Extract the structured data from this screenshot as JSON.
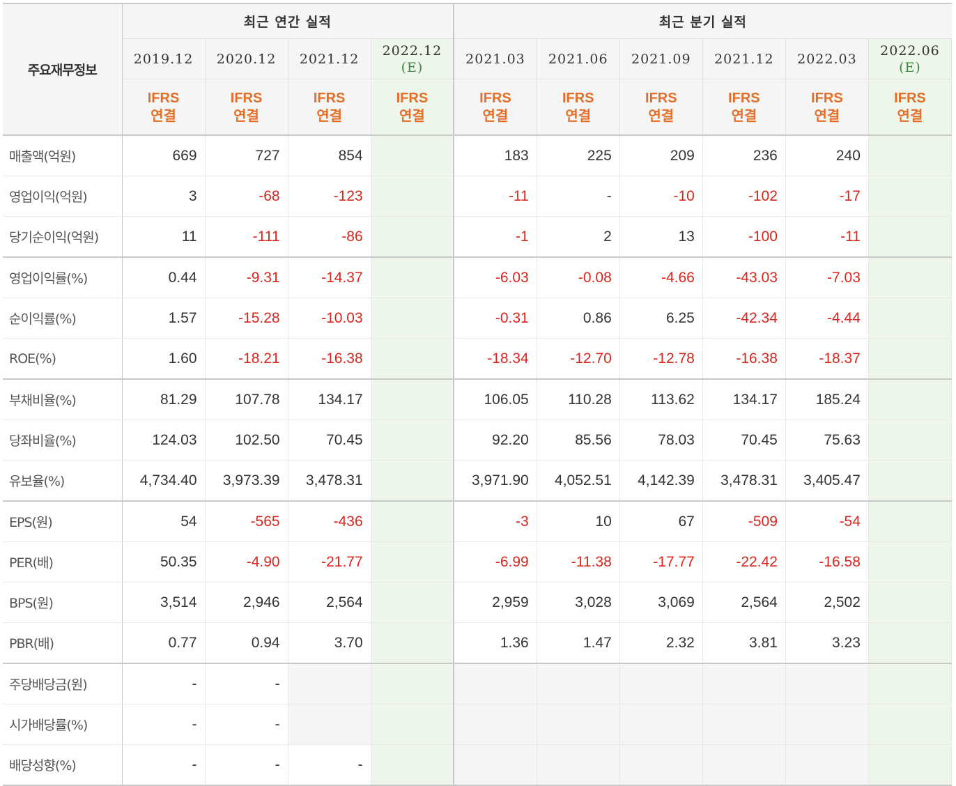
{
  "header": {
    "label": "주요재무정보",
    "annual_title": "최근 연간 실적",
    "quarter_title": "최근 분기 실적",
    "basis_line1": "IFRS",
    "basis_line2": "연결",
    "estimate_mark": "(E)"
  },
  "periods": [
    "2019.12",
    "2020.12",
    "2021.12",
    "2022.12",
    "2021.03",
    "2021.06",
    "2021.09",
    "2021.12",
    "2022.03",
    "2022.06"
  ],
  "rows": [
    {
      "label": "매출액(억원)",
      "values": [
        "669",
        "727",
        "854",
        "",
        "183",
        "225",
        "209",
        "236",
        "240",
        ""
      ]
    },
    {
      "label": "영업이익(억원)",
      "values": [
        "3",
        "-68",
        "-123",
        "",
        "-11",
        "-",
        "-10",
        "-102",
        "-17",
        ""
      ]
    },
    {
      "label": "당기순이익(억원)",
      "values": [
        "11",
        "-111",
        "-86",
        "",
        "-1",
        "2",
        "13",
        "-100",
        "-11",
        ""
      ]
    },
    {
      "label": "영업이익률(%)",
      "values": [
        "0.44",
        "-9.31",
        "-14.37",
        "",
        "-6.03",
        "-0.08",
        "-4.66",
        "-43.03",
        "-7.03",
        ""
      ]
    },
    {
      "label": "순이익률(%)",
      "values": [
        "1.57",
        "-15.28",
        "-10.03",
        "",
        "-0.31",
        "0.86",
        "6.25",
        "-42.34",
        "-4.44",
        ""
      ]
    },
    {
      "label": "ROE(%)",
      "values": [
        "1.60",
        "-18.21",
        "-16.38",
        "",
        "-18.34",
        "-12.70",
        "-12.78",
        "-16.38",
        "-18.37",
        ""
      ]
    },
    {
      "label": "부채비율(%)",
      "values": [
        "81.29",
        "107.78",
        "134.17",
        "",
        "106.05",
        "110.28",
        "113.62",
        "134.17",
        "185.24",
        ""
      ]
    },
    {
      "label": "당좌비율(%)",
      "values": [
        "124.03",
        "102.50",
        "70.45",
        "",
        "92.20",
        "85.56",
        "78.03",
        "70.45",
        "75.63",
        ""
      ]
    },
    {
      "label": "유보율(%)",
      "values": [
        "4,734.40",
        "3,973.39",
        "3,478.31",
        "",
        "3,971.90",
        "4,052.51",
        "4,142.39",
        "3,478.31",
        "3,405.47",
        ""
      ]
    },
    {
      "label": "EPS(원)",
      "values": [
        "54",
        "-565",
        "-436",
        "",
        "-3",
        "10",
        "67",
        "-509",
        "-54",
        ""
      ]
    },
    {
      "label": "PER(배)",
      "values": [
        "50.35",
        "-4.90",
        "-21.77",
        "",
        "-6.99",
        "-11.38",
        "-17.77",
        "-22.42",
        "-16.58",
        ""
      ]
    },
    {
      "label": "BPS(원)",
      "values": [
        "3,514",
        "2,946",
        "2,564",
        "",
        "2,959",
        "3,028",
        "3,069",
        "2,564",
        "2,502",
        ""
      ]
    },
    {
      "label": "PBR(배)",
      "values": [
        "0.77",
        "0.94",
        "3.70",
        "",
        "1.36",
        "1.47",
        "2.32",
        "3.81",
        "3.23",
        ""
      ]
    },
    {
      "label": "주당배당금(원)",
      "values": [
        "-",
        "-",
        "",
        "",
        "",
        "",
        "",
        "",
        "",
        ""
      ]
    },
    {
      "label": "시가배당률(%)",
      "values": [
        "-",
        "-",
        "",
        "",
        "",
        "",
        "",
        "",
        "",
        ""
      ]
    },
    {
      "label": "배당성향(%)",
      "values": [
        "-",
        "-",
        "-",
        "",
        "",
        "",
        "",
        "",
        "",
        ""
      ]
    }
  ],
  "colors": {
    "negative": "#d9251d",
    "basis_label": "#e46e28",
    "estimate_mark": "#3a8a3a",
    "forecast_column_bg": "#eef5ea",
    "header_bg": "#f5f5f5"
  }
}
